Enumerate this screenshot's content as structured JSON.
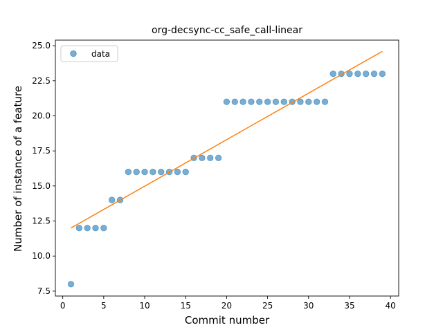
{
  "chart_data": {
    "type": "scatter",
    "title": "org-decsync-cc_safe_call-linear",
    "xlabel": "Commit number",
    "ylabel": "Number of instance of a feature",
    "xlim": [
      -0.9,
      41.0
    ],
    "ylim": [
      7.15,
      25.4
    ],
    "xticks": [
      0,
      5,
      10,
      15,
      20,
      25,
      30,
      35,
      40
    ],
    "xtick_labels": [
      "0",
      "5",
      "10",
      "15",
      "20",
      "25",
      "30",
      "35",
      "40"
    ],
    "yticks": [
      7.5,
      10.0,
      12.5,
      15.0,
      17.5,
      20.0,
      22.5,
      25.0
    ],
    "ytick_labels": [
      "7.5",
      "10.0",
      "12.5",
      "15.0",
      "17.5",
      "20.0",
      "22.5",
      "25.0"
    ],
    "grid": false,
    "legend": {
      "position": "top-left",
      "entries": [
        "data"
      ]
    },
    "series": [
      {
        "name": "data",
        "kind": "scatter",
        "color": "#1f77b4",
        "x": [
          1,
          2,
          3,
          4,
          5,
          6,
          7,
          8,
          9,
          10,
          11,
          12,
          13,
          14,
          15,
          16,
          17,
          18,
          19,
          20,
          21,
          22,
          23,
          24,
          25,
          26,
          27,
          28,
          29,
          30,
          31,
          32,
          33,
          34,
          35,
          36,
          37,
          38,
          39
        ],
        "y": [
          8,
          12,
          12,
          12,
          12,
          14,
          14,
          16,
          16,
          16,
          16,
          16,
          16,
          16,
          16,
          17,
          17,
          17,
          17,
          21,
          21,
          21,
          21,
          21,
          21,
          21,
          21,
          21,
          21,
          21,
          21,
          21,
          23,
          23,
          23,
          23,
          23,
          23,
          23
        ]
      },
      {
        "kind": "line",
        "color": "#ff7f0e",
        "x": [
          1,
          39
        ],
        "y": [
          12.0,
          24.6
        ]
      }
    ]
  }
}
